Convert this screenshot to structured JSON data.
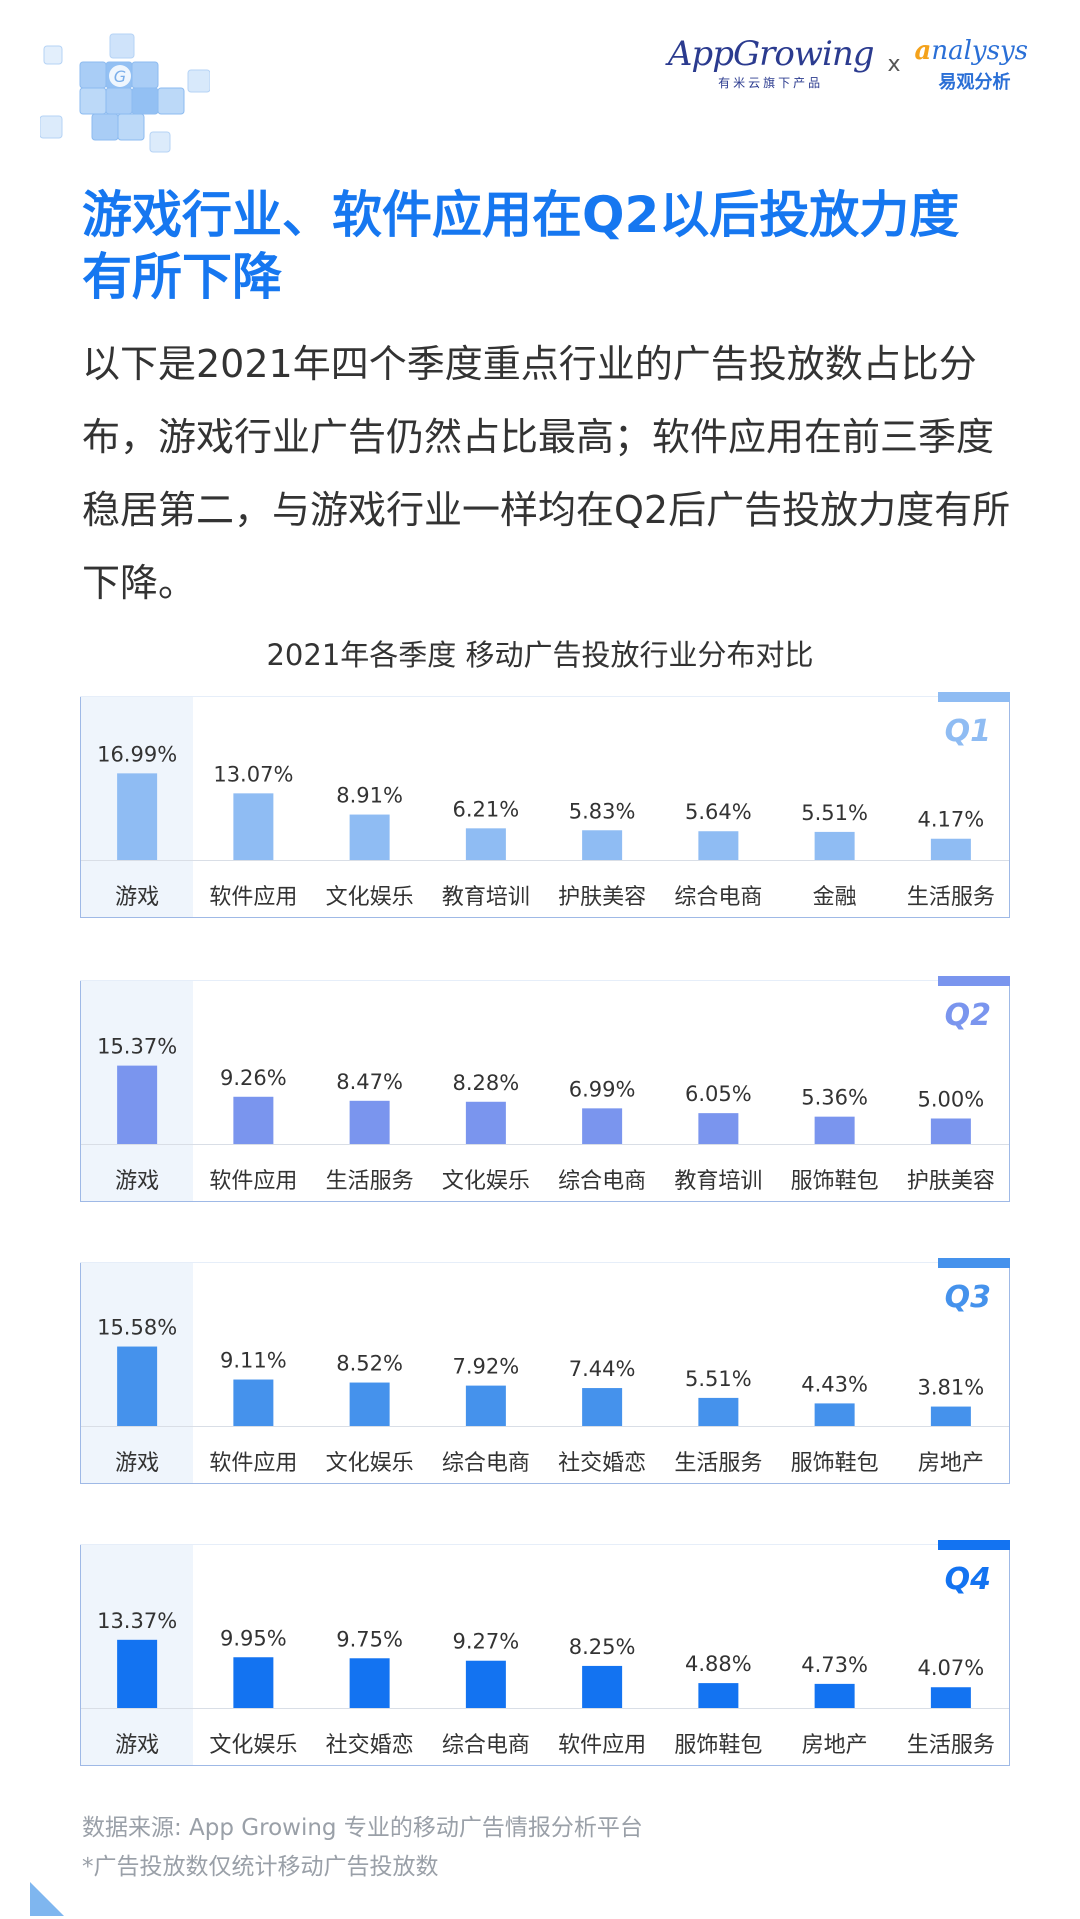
{
  "header": {
    "appgrowing_name": "AppGrowing",
    "appgrowing_sub": "有米云旗下产品",
    "separator": "x",
    "analysys_name_a": "a",
    "analysys_name_rest": "nalysys",
    "analysys_sub": "易观分析"
  },
  "headline": {
    "line1": "游戏行业、软件应用在Q2以后投放力度",
    "line2": "有所下降"
  },
  "body": {
    "paragraph": "以下是2021年四个季度重点行业的广告投放数占比分布，游戏行业广告仍然占比最高；软件应用在前三季度稳居第二，与游戏行业一样均在Q2后广告投放力度有所下降。"
  },
  "chart_title": "2021年各季度 移动广告投放行业分布对比",
  "colors": {
    "Q1": "#8fbcf3",
    "Q2": "#7a95ee",
    "Q3": "#4592ec",
    "Q4": "#1373f1"
  },
  "chart_data": [
    {
      "type": "bar",
      "label": "Q1",
      "categories": [
        "游戏",
        "软件应用",
        "文化娱乐",
        "教育培训",
        "护肤美容",
        "综合电商",
        "金融",
        "生活服务"
      ],
      "values": [
        16.99,
        13.07,
        8.91,
        6.21,
        5.83,
        5.64,
        5.51,
        4.17
      ],
      "value_labels": [
        "16.99%",
        "13.07%",
        "8.91%",
        "6.21%",
        "5.83%",
        "5.64%",
        "5.51%",
        "4.17%"
      ]
    },
    {
      "type": "bar",
      "label": "Q2",
      "categories": [
        "游戏",
        "软件应用",
        "生活服务",
        "文化娱乐",
        "综合电商",
        "教育培训",
        "服饰鞋包",
        "护肤美容"
      ],
      "values": [
        15.37,
        9.26,
        8.47,
        8.28,
        6.99,
        6.05,
        5.36,
        5.0
      ],
      "value_labels": [
        "15.37%",
        "9.26%",
        "8.47%",
        "8.28%",
        "6.99%",
        "6.05%",
        "5.36%",
        "5.00%"
      ]
    },
    {
      "type": "bar",
      "label": "Q3",
      "categories": [
        "游戏",
        "软件应用",
        "文化娱乐",
        "综合电商",
        "社交婚恋",
        "生活服务",
        "服饰鞋包",
        "房地产"
      ],
      "values": [
        15.58,
        9.11,
        8.52,
        7.92,
        7.44,
        5.51,
        4.43,
        3.81
      ],
      "value_labels": [
        "15.58%",
        "9.11%",
        "8.52%",
        "7.92%",
        "7.44%",
        "5.51%",
        "4.43%",
        "3.81%"
      ]
    },
    {
      "type": "bar",
      "label": "Q4",
      "categories": [
        "游戏",
        "文化娱乐",
        "社交婚恋",
        "综合电商",
        "软件应用",
        "服饰鞋包",
        "房地产",
        "生活服务"
      ],
      "values": [
        13.37,
        9.95,
        9.75,
        9.27,
        8.25,
        4.88,
        4.73,
        4.07
      ],
      "value_labels": [
        "13.37%",
        "9.95%",
        "9.75%",
        "9.27%",
        "8.25%",
        "4.88%",
        "4.73%",
        "4.07%"
      ]
    }
  ],
  "footer": {
    "source": "数据来源: App Growing 专业的移动广告情报分析平台",
    "note": "*广告投放数仅统计移动广告投放数"
  }
}
